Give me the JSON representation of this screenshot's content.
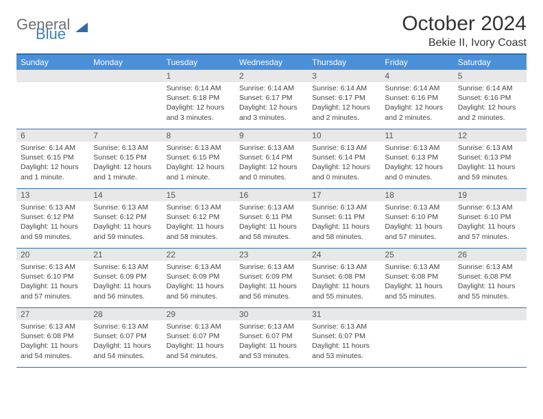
{
  "logo": {
    "text1": "General",
    "text2": "Blue"
  },
  "title": "October 2024",
  "location": "Bekie II, Ivory Coast",
  "colors": {
    "header_bg": "#4a90d9",
    "header_text": "#ffffff",
    "border": "#2f6ca8",
    "daynum_bg": "#e8e8e8",
    "body_text": "#444444",
    "title_text": "#333333",
    "logo_gray": "#6e6e6e",
    "logo_blue": "#3b7fc4"
  },
  "day_names": [
    "Sunday",
    "Monday",
    "Tuesday",
    "Wednesday",
    "Thursday",
    "Friday",
    "Saturday"
  ],
  "weeks": [
    [
      {
        "n": "",
        "sr": "",
        "ss": "",
        "dl": ""
      },
      {
        "n": "",
        "sr": "",
        "ss": "",
        "dl": ""
      },
      {
        "n": "1",
        "sr": "Sunrise: 6:14 AM",
        "ss": "Sunset: 6:18 PM",
        "dl": "Daylight: 12 hours and 3 minutes."
      },
      {
        "n": "2",
        "sr": "Sunrise: 6:14 AM",
        "ss": "Sunset: 6:17 PM",
        "dl": "Daylight: 12 hours and 3 minutes."
      },
      {
        "n": "3",
        "sr": "Sunrise: 6:14 AM",
        "ss": "Sunset: 6:17 PM",
        "dl": "Daylight: 12 hours and 2 minutes."
      },
      {
        "n": "4",
        "sr": "Sunrise: 6:14 AM",
        "ss": "Sunset: 6:16 PM",
        "dl": "Daylight: 12 hours and 2 minutes."
      },
      {
        "n": "5",
        "sr": "Sunrise: 6:14 AM",
        "ss": "Sunset: 6:16 PM",
        "dl": "Daylight: 12 hours and 2 minutes."
      }
    ],
    [
      {
        "n": "6",
        "sr": "Sunrise: 6:14 AM",
        "ss": "Sunset: 6:15 PM",
        "dl": "Daylight: 12 hours and 1 minute."
      },
      {
        "n": "7",
        "sr": "Sunrise: 6:13 AM",
        "ss": "Sunset: 6:15 PM",
        "dl": "Daylight: 12 hours and 1 minute."
      },
      {
        "n": "8",
        "sr": "Sunrise: 6:13 AM",
        "ss": "Sunset: 6:15 PM",
        "dl": "Daylight: 12 hours and 1 minute."
      },
      {
        "n": "9",
        "sr": "Sunrise: 6:13 AM",
        "ss": "Sunset: 6:14 PM",
        "dl": "Daylight: 12 hours and 0 minutes."
      },
      {
        "n": "10",
        "sr": "Sunrise: 6:13 AM",
        "ss": "Sunset: 6:14 PM",
        "dl": "Daylight: 12 hours and 0 minutes."
      },
      {
        "n": "11",
        "sr": "Sunrise: 6:13 AM",
        "ss": "Sunset: 6:13 PM",
        "dl": "Daylight: 12 hours and 0 minutes."
      },
      {
        "n": "12",
        "sr": "Sunrise: 6:13 AM",
        "ss": "Sunset: 6:13 PM",
        "dl": "Daylight: 11 hours and 59 minutes."
      }
    ],
    [
      {
        "n": "13",
        "sr": "Sunrise: 6:13 AM",
        "ss": "Sunset: 6:12 PM",
        "dl": "Daylight: 11 hours and 59 minutes."
      },
      {
        "n": "14",
        "sr": "Sunrise: 6:13 AM",
        "ss": "Sunset: 6:12 PM",
        "dl": "Daylight: 11 hours and 59 minutes."
      },
      {
        "n": "15",
        "sr": "Sunrise: 6:13 AM",
        "ss": "Sunset: 6:12 PM",
        "dl": "Daylight: 11 hours and 58 minutes."
      },
      {
        "n": "16",
        "sr": "Sunrise: 6:13 AM",
        "ss": "Sunset: 6:11 PM",
        "dl": "Daylight: 11 hours and 58 minutes."
      },
      {
        "n": "17",
        "sr": "Sunrise: 6:13 AM",
        "ss": "Sunset: 6:11 PM",
        "dl": "Daylight: 11 hours and 58 minutes."
      },
      {
        "n": "18",
        "sr": "Sunrise: 6:13 AM",
        "ss": "Sunset: 6:10 PM",
        "dl": "Daylight: 11 hours and 57 minutes."
      },
      {
        "n": "19",
        "sr": "Sunrise: 6:13 AM",
        "ss": "Sunset: 6:10 PM",
        "dl": "Daylight: 11 hours and 57 minutes."
      }
    ],
    [
      {
        "n": "20",
        "sr": "Sunrise: 6:13 AM",
        "ss": "Sunset: 6:10 PM",
        "dl": "Daylight: 11 hours and 57 minutes."
      },
      {
        "n": "21",
        "sr": "Sunrise: 6:13 AM",
        "ss": "Sunset: 6:09 PM",
        "dl": "Daylight: 11 hours and 56 minutes."
      },
      {
        "n": "22",
        "sr": "Sunrise: 6:13 AM",
        "ss": "Sunset: 6:09 PM",
        "dl": "Daylight: 11 hours and 56 minutes."
      },
      {
        "n": "23",
        "sr": "Sunrise: 6:13 AM",
        "ss": "Sunset: 6:09 PM",
        "dl": "Daylight: 11 hours and 56 minutes."
      },
      {
        "n": "24",
        "sr": "Sunrise: 6:13 AM",
        "ss": "Sunset: 6:08 PM",
        "dl": "Daylight: 11 hours and 55 minutes."
      },
      {
        "n": "25",
        "sr": "Sunrise: 6:13 AM",
        "ss": "Sunset: 6:08 PM",
        "dl": "Daylight: 11 hours and 55 minutes."
      },
      {
        "n": "26",
        "sr": "Sunrise: 6:13 AM",
        "ss": "Sunset: 6:08 PM",
        "dl": "Daylight: 11 hours and 55 minutes."
      }
    ],
    [
      {
        "n": "27",
        "sr": "Sunrise: 6:13 AM",
        "ss": "Sunset: 6:08 PM",
        "dl": "Daylight: 11 hours and 54 minutes."
      },
      {
        "n": "28",
        "sr": "Sunrise: 6:13 AM",
        "ss": "Sunset: 6:07 PM",
        "dl": "Daylight: 11 hours and 54 minutes."
      },
      {
        "n": "29",
        "sr": "Sunrise: 6:13 AM",
        "ss": "Sunset: 6:07 PM",
        "dl": "Daylight: 11 hours and 54 minutes."
      },
      {
        "n": "30",
        "sr": "Sunrise: 6:13 AM",
        "ss": "Sunset: 6:07 PM",
        "dl": "Daylight: 11 hours and 53 minutes."
      },
      {
        "n": "31",
        "sr": "Sunrise: 6:13 AM",
        "ss": "Sunset: 6:07 PM",
        "dl": "Daylight: 11 hours and 53 minutes."
      },
      {
        "n": "",
        "sr": "",
        "ss": "",
        "dl": ""
      },
      {
        "n": "",
        "sr": "",
        "ss": "",
        "dl": ""
      }
    ]
  ]
}
